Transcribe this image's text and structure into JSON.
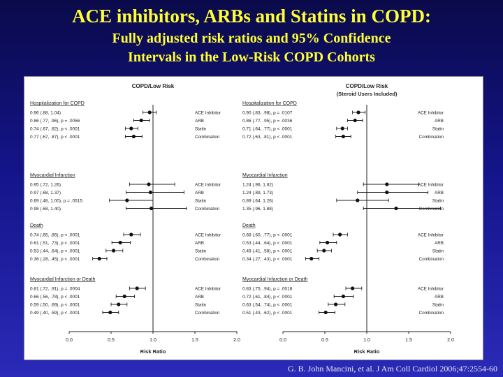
{
  "slide": {
    "title": "ACE inhibitors, ARBs and Statins in COPD:",
    "subtitle_line1": "Fully adjusted risk ratios and  95% Confidence",
    "subtitle_line2": "Intervals in the Low-Risk COPD Cohorts",
    "citation": "G. B. John Mancini, et al. J Am Coll Cardiol 2006;47:2554-60"
  },
  "chart_data": [
    {
      "type": "forest",
      "title": "COPD/Low Risk",
      "subtitle": "",
      "xlabel": "Risk Ratio",
      "xlim": [
        0,
        2
      ],
      "xticks": [
        "0.0",
        "0.5",
        "1.0",
        "1.5",
        "2.0"
      ],
      "reference_line": 1.0,
      "groups": [
        {
          "name": "Hospitalization for COPD",
          "rows": [
            {
              "drug": "ACE Inhibitor",
              "rr": 0.96,
              "lo": 0.88,
              "hi": 1.04,
              "label": "0.96 (.88, 1.04)"
            },
            {
              "drug": "ARB",
              "rr": 0.86,
              "lo": 0.77,
              "hi": 0.96,
              "label": "0.86 (.77, .96), p = .0056"
            },
            {
              "drug": "Statin",
              "rr": 0.74,
              "lo": 0.67,
              "hi": 0.82,
              "label": "0.74 (.67, .82), p < .0001"
            },
            {
              "drug": "Combination",
              "rr": 0.77,
              "lo": 0.67,
              "hi": 0.87,
              "label": "0.77 (.67, .87), p < .0001"
            }
          ]
        },
        {
          "name": "Myocardial Infarction",
          "rows": [
            {
              "drug": "ACE Inhibitor",
              "rr": 0.95,
              "lo": 0.72,
              "hi": 1.26,
              "label": "0.95 (.72, 1.26)"
            },
            {
              "drug": "ARB",
              "rr": 0.97,
              "lo": 0.68,
              "hi": 1.37,
              "label": "0.97 (.68, 1.37)"
            },
            {
              "drug": "Statin",
              "rr": 0.69,
              "lo": 0.48,
              "hi": 1.0,
              "label": "0.69 (.48, 1.00), p = .0515"
            },
            {
              "drug": "Combination",
              "rr": 0.98,
              "lo": 0.68,
              "hi": 1.4,
              "label": "0.98 (.68, 1.40)"
            }
          ]
        },
        {
          "name": "Death",
          "rows": [
            {
              "drug": "ACE Inhibitor",
              "rr": 0.74,
              "lo": 0.65,
              "hi": 0.85,
              "label": "0.74 (.65, .85), p < .0001"
            },
            {
              "drug": "ARB",
              "rr": 0.61,
              "lo": 0.51,
              "hi": 0.73,
              "label": "0.61 (.51, .73), p < .0001"
            },
            {
              "drug": "Statin",
              "rr": 0.53,
              "lo": 0.44,
              "hi": 0.64,
              "label": "0.53 (.44, .64), p < .0001"
            },
            {
              "drug": "Combination",
              "rr": 0.36,
              "lo": 0.28,
              "hi": 0.45,
              "label": "0.36 (.28, .45), p < .0001"
            }
          ]
        },
        {
          "name": "Myocardial Infarction or Death",
          "rows": [
            {
              "drug": "ACE Inhibitor",
              "rr": 0.81,
              "lo": 0.72,
              "hi": 0.91,
              "label": "0.81 (.72, .91), p = .0004"
            },
            {
              "drug": "ARB",
              "rr": 0.66,
              "lo": 0.56,
              "hi": 0.78,
              "label": "0.66 (.56, .78), p < .0001"
            },
            {
              "drug": "Statin",
              "rr": 0.59,
              "lo": 0.5,
              "hi": 0.69,
              "label": "0.59 (.50, .69), p < .0001"
            },
            {
              "drug": "Combination",
              "rr": 0.49,
              "lo": 0.4,
              "hi": 0.59,
              "label": "0.49 (.40, .59), p < .0001"
            }
          ]
        }
      ]
    },
    {
      "type": "forest",
      "title": "COPD/Low Risk",
      "subtitle": "(Steroid Users Included)",
      "xlabel": "Risk Ratio",
      "xlim": [
        0,
        2
      ],
      "xticks": [
        "0.0",
        "0.5",
        "1.0",
        "1.5",
        "2.0"
      ],
      "reference_line": 1.0,
      "groups": [
        {
          "name": "Hospitalization for COPD",
          "rows": [
            {
              "drug": "ACE Inhibitor",
              "rr": 0.9,
              "lo": 0.83,
              "hi": 0.98,
              "label": "0.90 (.83, .98), p = .0107"
            },
            {
              "drug": "ARB",
              "rr": 0.86,
              "lo": 0.77,
              "hi": 0.95,
              "label": "0.86 (.77, .95), p = .0036"
            },
            {
              "drug": "Statin",
              "rr": 0.71,
              "lo": 0.64,
              "hi": 0.77,
              "label": "0.71 (.64, .77), p < .0001"
            },
            {
              "drug": "Combination",
              "rr": 0.72,
              "lo": 0.63,
              "hi": 0.81,
              "label": "0.72 (.63, .81), p < .0001"
            }
          ]
        },
        {
          "name": "Myocardial Infarction",
          "rows": [
            {
              "drug": "ACE Inhibitor",
              "rr": 1.24,
              "lo": 0.96,
              "hi": 1.62,
              "label": "1.24 (.96, 1.62)"
            },
            {
              "drug": "ARB",
              "rr": 1.24,
              "lo": 0.89,
              "hi": 1.73,
              "label": "1.24 (.89, 1.73)"
            },
            {
              "drug": "Statin",
              "rr": 0.89,
              "lo": 0.64,
              "hi": 1.26,
              "label": "0.89 (.64, 1.26)"
            },
            {
              "drug": "Combination",
              "rr": 1.35,
              "lo": 0.96,
              "hi": 1.88,
              "label": "1.35 (.96, 1.88)"
            }
          ]
        },
        {
          "name": "Death",
          "rows": [
            {
              "drug": "ACE Inhibitor",
              "rr": 0.68,
              "lo": 0.6,
              "hi": 0.77,
              "label": "0.68 (.60, .77), p < .0001"
            },
            {
              "drug": "ARB",
              "rr": 0.53,
              "lo": 0.44,
              "hi": 0.64,
              "label": "0.53 (.44, .64), p < .0001"
            },
            {
              "drug": "Statin",
              "rr": 0.49,
              "lo": 0.41,
              "hi": 0.58,
              "label": "0.49 (.41, .58), p < .0001"
            },
            {
              "drug": "Combination",
              "rr": 0.34,
              "lo": 0.27,
              "hi": 0.43,
              "label": "0.34 (.27, .43), p < .0001"
            }
          ]
        },
        {
          "name": "Myocardial Infarction or Death",
          "rows": [
            {
              "drug": "ACE Inhibitor",
              "rr": 0.83,
              "lo": 0.75,
              "hi": 0.94,
              "label": "0.83 (.75, .94), p = .0018"
            },
            {
              "drug": "ARB",
              "rr": 0.72,
              "lo": 0.61,
              "hi": 0.84,
              "label": "0.72 (.61, .84), p < .0001"
            },
            {
              "drug": "Statin",
              "rr": 0.63,
              "lo": 0.54,
              "hi": 0.74,
              "label": "0.63 (.54, .74), p < .0001"
            },
            {
              "drug": "Combination",
              "rr": 0.51,
              "lo": 0.43,
              "hi": 0.62,
              "label": "0.51 (.43, .62), p < .0001"
            }
          ]
        }
      ]
    }
  ]
}
